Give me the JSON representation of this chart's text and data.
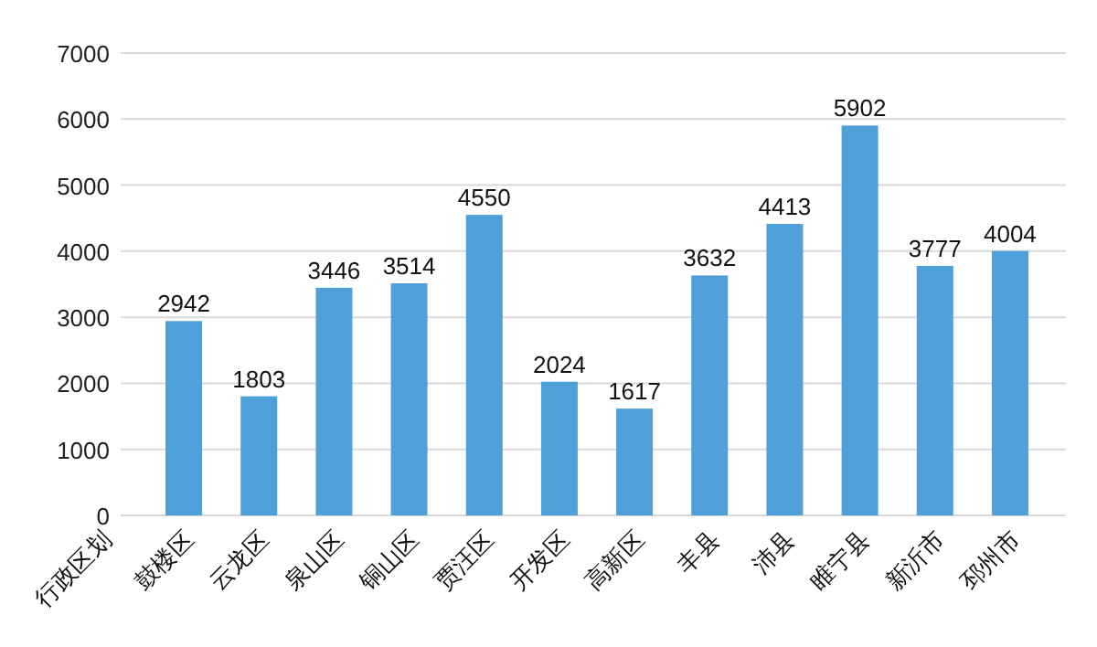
{
  "chart_data": {
    "type": "bar",
    "xlabel": "行政区划",
    "categories": [
      "鼓楼区",
      "云龙区",
      "泉山区",
      "铜山区",
      "贾汪区",
      "开发区",
      "高新区",
      "丰县",
      "沛县",
      "睢宁县",
      "新沂市",
      "邳州市"
    ],
    "values": [
      2942,
      1803,
      3446,
      3514,
      4550,
      2024,
      1617,
      3632,
      4413,
      5902,
      3777,
      4004
    ],
    "data_labels": true,
    "color": "#4f9fd9",
    "ylim": [
      0,
      7000
    ],
    "yticks": [
      0,
      1000,
      2000,
      3000,
      4000,
      5000,
      6000,
      7000
    ],
    "grid": "y"
  }
}
